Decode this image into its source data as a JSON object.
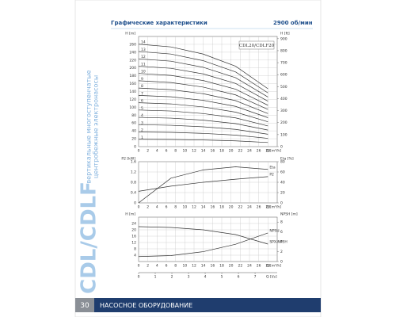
{
  "header": {
    "title": "Графические характеристики",
    "speed": "2900 об/мин"
  },
  "side": {
    "brand": "CDL/CDLF",
    "description": [
      "вертикальные многоступенчатые",
      "центробежные электронасосы"
    ]
  },
  "footer": {
    "page": "30",
    "section": "НАСОСНОЕ ОБОРУДОВАНИЕ"
  },
  "charts": [
    {
      "type": "line",
      "label": "CDL20/CDLF20",
      "xlabel": "Q [m³/h]",
      "ylabel": "H [m]",
      "y2label": "H [ft]",
      "x": [
        0,
        7,
        14,
        21,
        28
      ],
      "xlim": [
        0,
        30
      ],
      "xticks": [
        0,
        2,
        4,
        6,
        8,
        10,
        12,
        14,
        16,
        18,
        20,
        22,
        24,
        26,
        28
      ],
      "ylim": [
        0,
        280
      ],
      "yticks": [
        0,
        20,
        40,
        60,
        80,
        100,
        120,
        140,
        160,
        180,
        200,
        220,
        240,
        260
      ],
      "y2lim": [
        0,
        918.6
      ],
      "y2ticks": [
        0,
        100,
        200,
        300,
        400,
        500,
        600,
        700,
        800,
        900
      ],
      "grid": true,
      "series": [
        {
          "name": "1",
          "color": "#333333",
          "values": [
            18.6,
            18.1,
            16.8,
            14.6,
            10.5
          ]
        },
        {
          "name": "2",
          "color": "#333333",
          "values": [
            37.2,
            36.2,
            33.6,
            29.2,
            21
          ]
        },
        {
          "name": "3",
          "color": "#333333",
          "values": [
            55.8,
            54.3,
            50.4,
            43.8,
            31.5
          ]
        },
        {
          "name": "4",
          "color": "#333333",
          "values": [
            74.4,
            72.4,
            67.2,
            58.4,
            42
          ]
        },
        {
          "name": "5",
          "color": "#333333",
          "values": [
            93,
            90.5,
            84,
            73,
            52.5
          ]
        },
        {
          "name": "6",
          "color": "#333333",
          "values": [
            111.6,
            108.6,
            100.8,
            87.6,
            63
          ]
        },
        {
          "name": "7",
          "color": "#333333",
          "values": [
            130.2,
            126.7,
            117.6,
            102.2,
            73.5
          ]
        },
        {
          "name": "8",
          "color": "#333333",
          "values": [
            148.8,
            144.8,
            134.4,
            116.8,
            84
          ]
        },
        {
          "name": "9",
          "color": "#333333",
          "values": [
            167.4,
            162.9,
            151.2,
            131.4,
            94.5
          ]
        },
        {
          "name": "10",
          "color": "#333333",
          "values": [
            186,
            181,
            168,
            146,
            105
          ]
        },
        {
          "name": "11",
          "color": "#333333",
          "values": [
            204.6,
            199.1,
            184.8,
            160.6,
            115.5
          ]
        },
        {
          "name": "12",
          "color": "#333333",
          "values": [
            223.2,
            217.2,
            201.6,
            175.2,
            126
          ]
        },
        {
          "name": "13",
          "color": "#333333",
          "values": [
            241.8,
            235.3,
            218.4,
            189.8,
            136.5
          ]
        },
        {
          "name": "14",
          "color": "#333333",
          "values": [
            260.4,
            253.4,
            235.2,
            204.4,
            147
          ]
        }
      ]
    },
    {
      "type": "line",
      "xlabel": "Q [m³/h]",
      "ylabel": "P2 [kW]",
      "y2label": "Eta [%]",
      "x": [
        0,
        7,
        14,
        21,
        28
      ],
      "xlim": [
        0,
        30
      ],
      "xticks": [
        0,
        2,
        4,
        6,
        8,
        10,
        12,
        14,
        16,
        18,
        20,
        22,
        24,
        26,
        28
      ],
      "ylim": [
        0,
        1.6
      ],
      "yticks": [
        0,
        0.4,
        0.8,
        1.2,
        1.6
      ],
      "y2lim": [
        0,
        80
      ],
      "y2ticks": [
        0,
        20,
        40,
        60,
        80
      ],
      "grid": true,
      "series": [
        {
          "name": "Eta",
          "color": "#333333",
          "axis": "y2",
          "values": [
            0,
            48,
            64,
            70,
            65
          ]
        },
        {
          "name": "P2",
          "color": "#333333",
          "values": [
            0.45,
            0.65,
            0.8,
            0.92,
            1.02
          ]
        }
      ]
    },
    {
      "type": "line",
      "xlabel": "Q [m³/h]",
      "ylabel": "H [m]",
      "y2label": "NPSH [m]",
      "x2label": "Q [l/s]",
      "x": [
        0,
        7,
        14,
        21,
        28
      ],
      "xlim": [
        0,
        30
      ],
      "xticks": [
        0,
        2,
        4,
        6,
        8,
        10,
        12,
        14,
        16,
        18,
        20,
        22,
        24,
        26,
        28
      ],
      "x2lim": [
        0,
        8.33
      ],
      "x2ticks": [
        0,
        1,
        2,
        3,
        4,
        5,
        6,
        7
      ],
      "ylim": [
        0,
        28
      ],
      "yticks": [
        4,
        8,
        12,
        16,
        20,
        24
      ],
      "y2lim": [
        0,
        9
      ],
      "y2ticks": [
        0,
        2,
        4,
        6,
        8
      ],
      "grid": true,
      "series": [
        {
          "name": "SPX-NPSH",
          "color": "#333333",
          "values": [
            22,
            21.5,
            20,
            17,
            11
          ]
        },
        {
          "name": "NPSH",
          "color": "#333333",
          "axis": "y2",
          "values": [
            1,
            1.2,
            2,
            3.5,
            5.8
          ]
        }
      ]
    }
  ]
}
